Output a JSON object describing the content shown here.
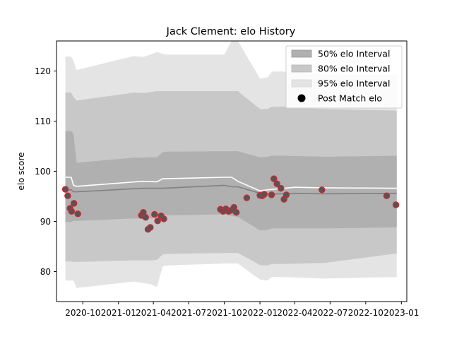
{
  "chart_data": {
    "type": "area",
    "title": "Jack Clement: elo History",
    "xlabel": "",
    "ylabel": "elo score",
    "x_ticks": [
      "2020-10",
      "2021-01",
      "2021-04",
      "2021-07",
      "2021-10",
      "2022-01",
      "2022-04",
      "2022-07",
      "2022-10",
      "2023-01"
    ],
    "y_ticks": [
      80,
      90,
      100,
      110,
      120
    ],
    "xlim": [
      "2020-07-25",
      "2023-01-15"
    ],
    "ylim": [
      74,
      126
    ],
    "legend": {
      "placement": "top-right",
      "entries": [
        "50% elo Interval",
        "80% elo Interval",
        "95% elo Interval",
        "Post Match elo"
      ]
    },
    "colors": {
      "band_50": "#b0b0b0",
      "band_80": "#c8c8c8",
      "band_95": "#e4e4e4",
      "median_line": "#808080",
      "mean_line": "#ffffff",
      "point_fill": "#555555",
      "point_edge": "#e0202a"
    },
    "bands": {
      "x": [
        "2020-08-17",
        "2020-09-01",
        "2020-09-07",
        "2020-09-15",
        "2021-02-10",
        "2021-03-05",
        "2021-03-25",
        "2021-04-10",
        "2021-04-25",
        "2021-05-05",
        "2021-10-01",
        "2021-10-20",
        "2021-11-05",
        "2022-01-01",
        "2022-01-20",
        "2022-02-01",
        "2022-02-10",
        "2022-03-01",
        "2022-06-15",
        "2022-12-20"
      ],
      "q95_upper": [
        122.9,
        122.9,
        122.0,
        120.2,
        123.0,
        122.8,
        123.3,
        123.8,
        123.4,
        123.3,
        123.3,
        126.0,
        126.0,
        118.5,
        118.7,
        119.9,
        119.9,
        119.9,
        119.3,
        119.2
      ],
      "q80_upper": [
        115.7,
        115.7,
        114.8,
        114.1,
        115.7,
        115.6,
        115.8,
        116.0,
        116.0,
        116.0,
        116.0,
        116.0,
        116.0,
        112.4,
        112.4,
        112.9,
        112.9,
        112.9,
        112.4,
        112.1
      ],
      "q50_upper": [
        108.0,
        108.0,
        107.5,
        101.7,
        102.7,
        102.7,
        102.8,
        102.8,
        103.8,
        103.9,
        104.0,
        104.0,
        104.0,
        102.8,
        102.9,
        103.1,
        103.1,
        103.1,
        102.9,
        103.1
      ],
      "q50_lower": [
        89.9,
        89.9,
        90.1,
        90.1,
        90.6,
        90.5,
        90.6,
        90.9,
        91.1,
        91.2,
        91.4,
        91.1,
        90.9,
        88.2,
        88.3,
        88.6,
        88.6,
        88.6,
        88.6,
        88.8
      ],
      "q80_lower": [
        82.0,
        82.0,
        81.9,
        81.9,
        82.2,
        82.2,
        82.2,
        82.3,
        83.4,
        83.5,
        83.7,
        83.7,
        83.7,
        81.3,
        81.2,
        81.5,
        81.5,
        81.5,
        81.7,
        83.6
      ],
      "q95_lower": [
        78.2,
        78.2,
        78.2,
        76.7,
        78.0,
        77.7,
        77.5,
        76.9,
        81.0,
        81.2,
        81.6,
        81.6,
        81.6,
        78.4,
        78.2,
        78.9,
        78.9,
        78.9,
        78.6,
        78.9
      ]
    },
    "median_line": {
      "x": [
        "2020-08-17",
        "2020-09-01",
        "2020-09-07",
        "2020-09-15",
        "2021-03-05",
        "2021-04-25",
        "2021-10-01",
        "2021-10-20",
        "2021-11-05",
        "2022-01-01",
        "2022-01-20",
        "2022-04-01",
        "2022-06-15",
        "2022-12-20"
      ],
      "values": [
        96.3,
        96.3,
        95.9,
        95.9,
        96.6,
        96.6,
        97.2,
        96.9,
        96.9,
        95.6,
        95.4,
        95.6,
        95.5,
        95.6
      ]
    },
    "mean_line": {
      "x": [
        "2020-08-17",
        "2020-09-01",
        "2020-09-07",
        "2020-09-15",
        "2021-03-05",
        "2021-04-10",
        "2021-04-25",
        "2021-10-01",
        "2021-10-20",
        "2021-11-05",
        "2022-01-01",
        "2022-01-20",
        "2022-04-01",
        "2022-06-15",
        "2022-12-20"
      ],
      "values": [
        98.8,
        98.8,
        97.2,
        97.0,
        98.0,
        97.9,
        98.5,
        98.8,
        98.8,
        98.0,
        96.1,
        96.3,
        96.8,
        96.7,
        96.6
      ]
    },
    "points": {
      "x": [
        "2020-08-17",
        "2020-08-23",
        "2020-08-29",
        "2020-09-02",
        "2020-09-08",
        "2020-09-18",
        "2021-03-01",
        "2021-03-06",
        "2021-03-12",
        "2021-03-18",
        "2021-03-24",
        "2021-04-04",
        "2021-04-12",
        "2021-04-21",
        "2021-04-28",
        "2021-09-21",
        "2021-09-28",
        "2021-10-05",
        "2021-10-12",
        "2021-10-19",
        "2021-10-26",
        "2021-11-01",
        "2021-11-28",
        "2022-01-01",
        "2022-01-07",
        "2022-01-12",
        "2022-01-31",
        "2022-02-06",
        "2022-02-14",
        "2022-02-24",
        "2022-03-04",
        "2022-03-10",
        "2022-06-10",
        "2022-11-24",
        "2022-12-18"
      ],
      "values": [
        96.4,
        95.1,
        92.6,
        92.0,
        93.6,
        91.5,
        91.2,
        91.8,
        90.8,
        88.4,
        88.8,
        91.4,
        90.1,
        91.1,
        90.5,
        92.4,
        92.0,
        92.5,
        92.0,
        92.2,
        92.8,
        91.8,
        94.7,
        95.2,
        95.1,
        95.4,
        95.3,
        98.5,
        97.5,
        96.6,
        94.4,
        95.3,
        96.3,
        95.1,
        93.3
      ]
    }
  }
}
